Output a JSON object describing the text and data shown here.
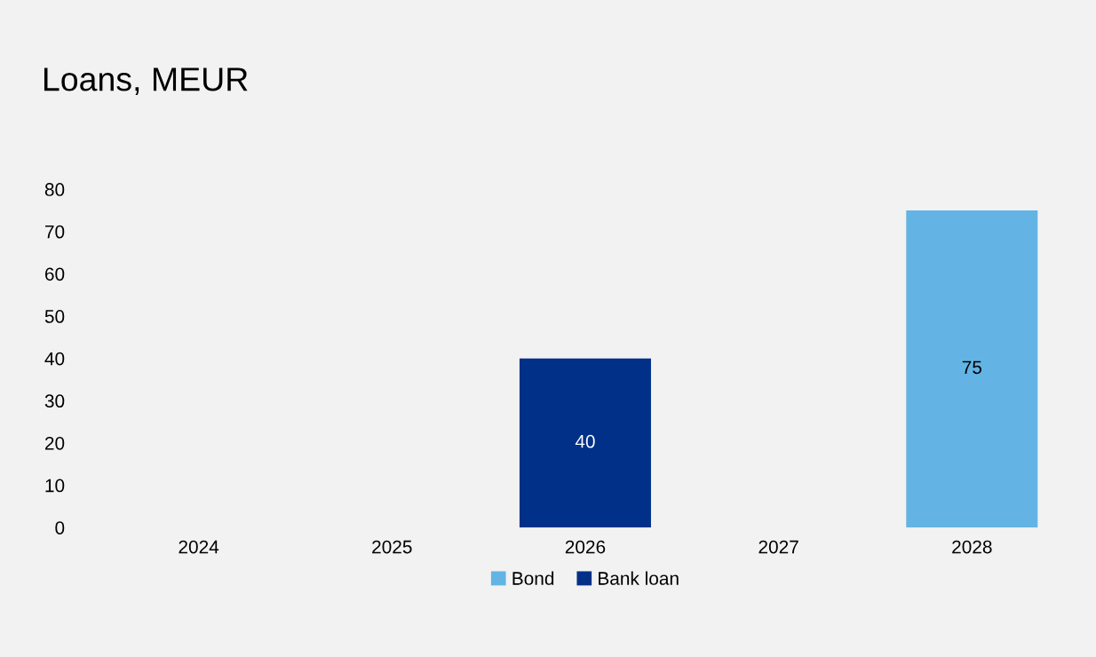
{
  "chart_data": {
    "type": "bar",
    "title": "Loans, MEUR",
    "categories": [
      "2024",
      "2025",
      "2026",
      "2027",
      "2028"
    ],
    "series": [
      {
        "name": "Bond",
        "color": "#63b4e4",
        "values": [
          null,
          null,
          null,
          null,
          75
        ],
        "value_labels": [
          null,
          null,
          null,
          null,
          "75"
        ]
      },
      {
        "name": "Bank loan",
        "color": "#003087",
        "values": [
          null,
          null,
          40,
          null,
          null
        ],
        "value_labels": [
          null,
          null,
          "40",
          null,
          null
        ]
      }
    ],
    "stacked": true,
    "ylim": [
      0,
      80
    ],
    "yticks": [
      0,
      10,
      20,
      30,
      40,
      50,
      60,
      70,
      80
    ],
    "grid": false,
    "legend": "bottom"
  }
}
